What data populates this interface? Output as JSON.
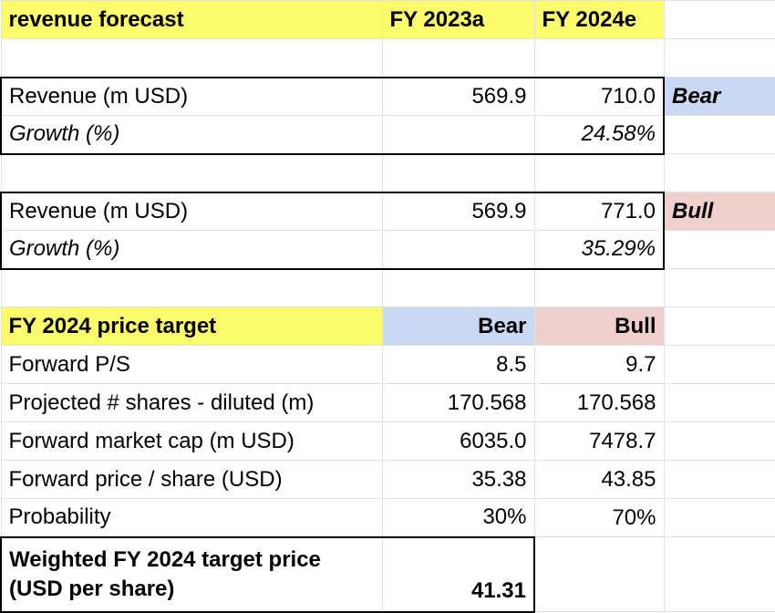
{
  "header": {
    "title": "revenue forecast",
    "col1": "FY 2023a",
    "col2": "FY 2024e"
  },
  "bear_scenario": {
    "revenue_label": "Revenue (m USD)",
    "fy2023": "569.9",
    "fy2024": "710.0",
    "scenario": "Bear",
    "growth_label": "Growth (%)",
    "growth": "24.58%"
  },
  "bull_scenario": {
    "revenue_label": "Revenue (m USD)",
    "fy2023": "569.9",
    "fy2024": "771.0",
    "scenario": "Bull",
    "growth_label": "Growth (%)",
    "growth": "35.29%"
  },
  "price_target": {
    "title": "FY 2024 price target",
    "bear": "Bear",
    "bull": "Bull",
    "rows": [
      [
        "Forward P/S",
        "8.5",
        "9.7"
      ],
      [
        "Projected # shares - diluted (m)",
        "170.568",
        "170.568"
      ],
      [
        "Forward market cap (m USD)",
        "6035.0",
        "7478.7"
      ],
      [
        "Forward price / share (USD)",
        "35.38",
        "43.85"
      ],
      [
        "Probability",
        "30%",
        "70%"
      ]
    ],
    "weighted": {
      "label": "Weighted FY 2024 target price (USD per share)",
      "value": "41.31"
    }
  }
}
